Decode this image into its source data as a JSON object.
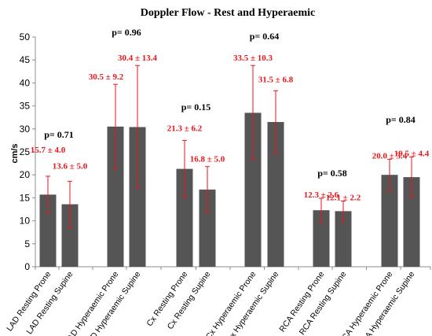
{
  "chart_data": {
    "type": "bar",
    "title": "Doppler Flow - Rest and Hyperaemic",
    "xlabel": "",
    "ylabel": "cm/s",
    "ylim": [
      0,
      50
    ],
    "yticks": [
      0,
      5,
      10,
      15,
      20,
      25,
      30,
      35,
      40,
      45,
      50
    ],
    "grid": false,
    "bar_color": "#555555",
    "error_color": "#e8161b",
    "categories": [
      "LAD Resting Prone",
      "LAD Resting Supine",
      "LAD Hyperaemic Prone",
      "LAD Hyperaemic Supine",
      "Cx Resting Prone",
      "Cx Resting Supine",
      "Cx Hyperaemic Prone",
      "Cx Hyperaemic Supine",
      "RCA Resting Prone",
      "RCA Resting Supine",
      "RCA Hyperaemic Prone",
      "RCA Hyperaemic Supine"
    ],
    "values": [
      15.7,
      13.6,
      30.5,
      30.4,
      21.3,
      16.8,
      33.5,
      31.5,
      12.3,
      12.1,
      20.0,
      19.5
    ],
    "errors": [
      4.0,
      5.0,
      9.2,
      13.4,
      6.2,
      5.0,
      10.3,
      6.8,
      2.6,
      2.2,
      3.4,
      4.4
    ],
    "data_labels": [
      "15.7 ± 4.0",
      "13.6 ± 5.0",
      "30.5 ± 9.2",
      "30.4 ± 13.4",
      "21.3 ± 6.2",
      "16.8 ± 5.0",
      "33.5 ± 10.3",
      "31.5 ± 6.8",
      "12.3 ± 2.6",
      "12.1 ± 2.2",
      "20.0 ± 3.4",
      "19.5 ± 4.4"
    ],
    "p_values": [
      "p= 0.71",
      "p= 0.96",
      "p= 0.15",
      "p= 0.64",
      "p= 0.58",
      "p= 0.84"
    ]
  }
}
